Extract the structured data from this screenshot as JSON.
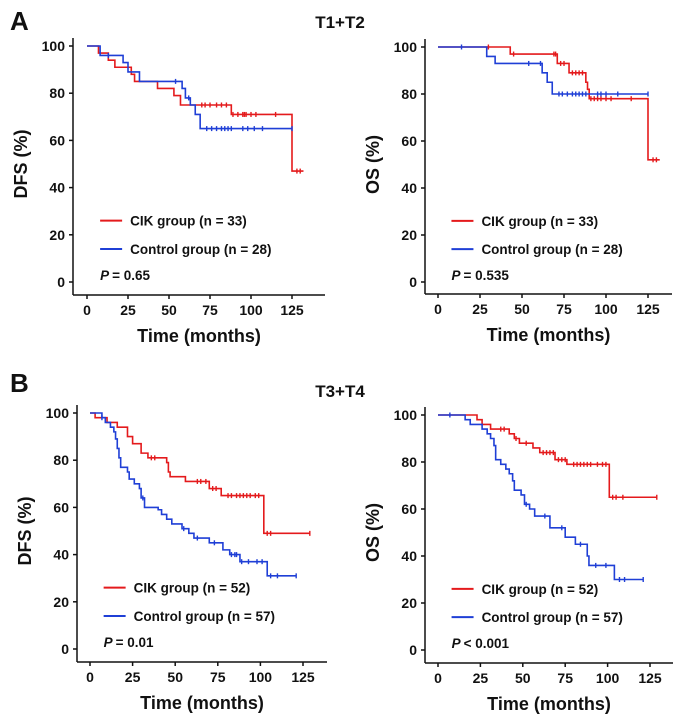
{
  "chart_data": [
    {
      "type": "line",
      "panel_label": "A",
      "group_title": "T1+T2",
      "xlabel": "Time (months)",
      "ylabel": "DFS (%)",
      "xlim": [
        0,
        140
      ],
      "ylim": [
        0,
        100
      ],
      "xticks": [
        "0",
        "25",
        "50",
        "75",
        "100",
        "125"
      ],
      "yticks": [
        "0",
        "20",
        "40",
        "60",
        "80",
        "100"
      ],
      "p_label": "P",
      "p_value": "= 0.65",
      "series": [
        {
          "name": "CIK group (n = 33)",
          "color": "#e41a1c",
          "steps": [
            [
              0,
              100
            ],
            [
              7,
              97
            ],
            [
              13,
              94
            ],
            [
              17,
              91
            ],
            [
              27,
              88
            ],
            [
              29,
              85
            ],
            [
              43,
              82
            ],
            [
              53,
              79
            ],
            [
              57,
              75
            ],
            [
              88,
              71
            ],
            [
              125,
              47
            ]
          ],
          "end": 132,
          "censored": [
            70,
            72,
            75,
            79,
            82,
            85,
            89,
            92,
            95,
            96,
            97,
            100,
            103,
            115,
            128,
            130
          ]
        },
        {
          "name": "Control group (n = 28)",
          "color": "#1f3fd6",
          "steps": [
            [
              0,
              100
            ],
            [
              8,
              96
            ],
            [
              22,
              93
            ],
            [
              25,
              89
            ],
            [
              32,
              85
            ],
            [
              58,
              82
            ],
            [
              60,
              78
            ],
            [
              63,
              75
            ],
            [
              66,
              71
            ],
            [
              69,
              65
            ]
          ],
          "end": 125,
          "censored": [
            13,
            54,
            62,
            73,
            76,
            79,
            82,
            84,
            86,
            88,
            95,
            98,
            102,
            107,
            125
          ]
        }
      ]
    },
    {
      "type": "line",
      "panel_label": "",
      "group_title": "",
      "xlabel": "Time (months)",
      "ylabel": "OS (%)",
      "xlim": [
        0,
        140
      ],
      "ylim": [
        0,
        100
      ],
      "xticks": [
        "0",
        "25",
        "50",
        "75",
        "100",
        "125"
      ],
      "yticks": [
        "0",
        "20",
        "40",
        "60",
        "80",
        "100"
      ],
      "p_label": "P",
      "p_value": "= 0.535",
      "series": [
        {
          "name": "CIK group (n = 33)",
          "color": "#e41a1c",
          "steps": [
            [
              0,
              100
            ],
            [
              43,
              97
            ],
            [
              71,
              93
            ],
            [
              78,
              89
            ],
            [
              88,
              85
            ],
            [
              89,
              82
            ],
            [
              90,
              78
            ],
            [
              125,
              52
            ]
          ],
          "end": 132,
          "censored": [
            30,
            45,
            69,
            70,
            73,
            75,
            80,
            82,
            84,
            86,
            91,
            93,
            95,
            97,
            100,
            103,
            115,
            128,
            130
          ]
        },
        {
          "name": "Control group (n = 28)",
          "color": "#1f3fd6",
          "steps": [
            [
              0,
              100
            ],
            [
              29,
              96
            ],
            [
              34,
              93
            ],
            [
              62,
              89
            ],
            [
              65,
              85
            ],
            [
              68,
              80
            ]
          ],
          "end": 125,
          "censored": [
            14,
            54,
            61,
            72,
            74,
            77,
            80,
            82,
            84,
            86,
            88,
            95,
            97,
            100,
            107,
            125
          ]
        }
      ]
    },
    {
      "type": "line",
      "panel_label": "B",
      "group_title": "T3+T4",
      "xlabel": "Time (months)",
      "ylabel": "DFS (%)",
      "xlim": [
        0,
        140
      ],
      "ylim": [
        0,
        100
      ],
      "xticks": [
        "0",
        "25",
        "50",
        "75",
        "100",
        "125"
      ],
      "yticks": [
        "0",
        "20",
        "40",
        "60",
        "80",
        "100"
      ],
      "p_label": "P",
      "p_value": "= 0.01",
      "series": [
        {
          "name": "CIK group (n = 52)",
          "color": "#e41a1c",
          "steps": [
            [
              0,
              100
            ],
            [
              3,
              98
            ],
            [
              10,
              96
            ],
            [
              16,
              94
            ],
            [
              22,
              90
            ],
            [
              25,
              87
            ],
            [
              30,
              83
            ],
            [
              34,
              81
            ],
            [
              45,
              79
            ],
            [
              46,
              75
            ],
            [
              47,
              73
            ],
            [
              56,
              71
            ],
            [
              70,
              68
            ],
            [
              77,
              65
            ],
            [
              102,
              49
            ]
          ],
          "end": 129,
          "censored": [
            36,
            38,
            63,
            65,
            68,
            72,
            74,
            81,
            83,
            86,
            88,
            90,
            92,
            94,
            97,
            99,
            104,
            106,
            129
          ]
        },
        {
          "name": "Control group (n = 57)",
          "color": "#1f3fd6",
          "steps": [
            [
              0,
              100
            ],
            [
              7,
              98
            ],
            [
              9,
              96
            ],
            [
              12,
              94
            ],
            [
              14,
              92
            ],
            [
              15,
              89
            ],
            [
              16,
              85
            ],
            [
              17,
              81
            ],
            [
              18,
              77
            ],
            [
              22,
              75
            ],
            [
              23,
              72
            ],
            [
              26,
              70
            ],
            [
              29,
              68
            ],
            [
              30,
              64
            ],
            [
              32,
              60
            ],
            [
              40,
              59
            ],
            [
              42,
              57
            ],
            [
              45,
              55
            ],
            [
              48,
              53
            ],
            [
              54,
              51
            ],
            [
              58,
              49
            ],
            [
              61,
              47
            ],
            [
              70,
              45
            ],
            [
              78,
              42
            ],
            [
              82,
              40
            ],
            [
              88,
              37
            ],
            [
              104,
              31
            ]
          ],
          "end": 121,
          "censored": [
            7,
            31,
            55,
            63,
            73,
            83,
            85,
            86,
            89,
            93,
            98,
            101,
            106,
            110,
            121
          ]
        }
      ]
    },
    {
      "type": "line",
      "panel_label": "",
      "group_title": "",
      "xlabel": "Time (months)",
      "ylabel": "OS (%)",
      "xlim": [
        0,
        140
      ],
      "ylim": [
        0,
        100
      ],
      "xticks": [
        "0",
        "25",
        "50",
        "75",
        "100",
        "125"
      ],
      "yticks": [
        "0",
        "20",
        "40",
        "60",
        "80",
        "100"
      ],
      "p_label": "P",
      "p_value": "< 0.001",
      "series": [
        {
          "name": "CIK group (n = 52)",
          "color": "#e41a1c",
          "steps": [
            [
              0,
              100
            ],
            [
              23,
              98
            ],
            [
              26,
              96
            ],
            [
              31,
              94
            ],
            [
              42,
              92
            ],
            [
              45,
              90
            ],
            [
              48,
              88
            ],
            [
              56,
              86
            ],
            [
              60,
              84
            ],
            [
              69,
              81
            ],
            [
              76,
              79
            ],
            [
              101,
              65
            ]
          ],
          "end": 129,
          "censored": [
            37,
            39,
            46,
            52,
            62,
            64,
            66,
            68,
            71,
            73,
            75,
            80,
            82,
            84,
            86,
            88,
            90,
            94,
            97,
            99,
            103,
            105,
            109,
            129
          ]
        },
        {
          "name": "Control group (n = 57)",
          "color": "#1f3fd6",
          "steps": [
            [
              0,
              100
            ],
            [
              16,
              98
            ],
            [
              19,
              96
            ],
            [
              26,
              94
            ],
            [
              29,
              92
            ],
            [
              31,
              90
            ],
            [
              33,
              87
            ],
            [
              34,
              81
            ],
            [
              37,
              79
            ],
            [
              40,
              77
            ],
            [
              42,
              75
            ],
            [
              44,
              72
            ],
            [
              45,
              68
            ],
            [
              49,
              66
            ],
            [
              51,
              62
            ],
            [
              54,
              60
            ],
            [
              57,
              57
            ],
            [
              66,
              52
            ],
            [
              75,
              48
            ],
            [
              81,
              45
            ],
            [
              88,
              40
            ],
            [
              89,
              36
            ],
            [
              104,
              30
            ]
          ],
          "end": 121,
          "censored": [
            7,
            52,
            63,
            73,
            84,
            93,
            99,
            107,
            110,
            121
          ]
        }
      ]
    }
  ]
}
